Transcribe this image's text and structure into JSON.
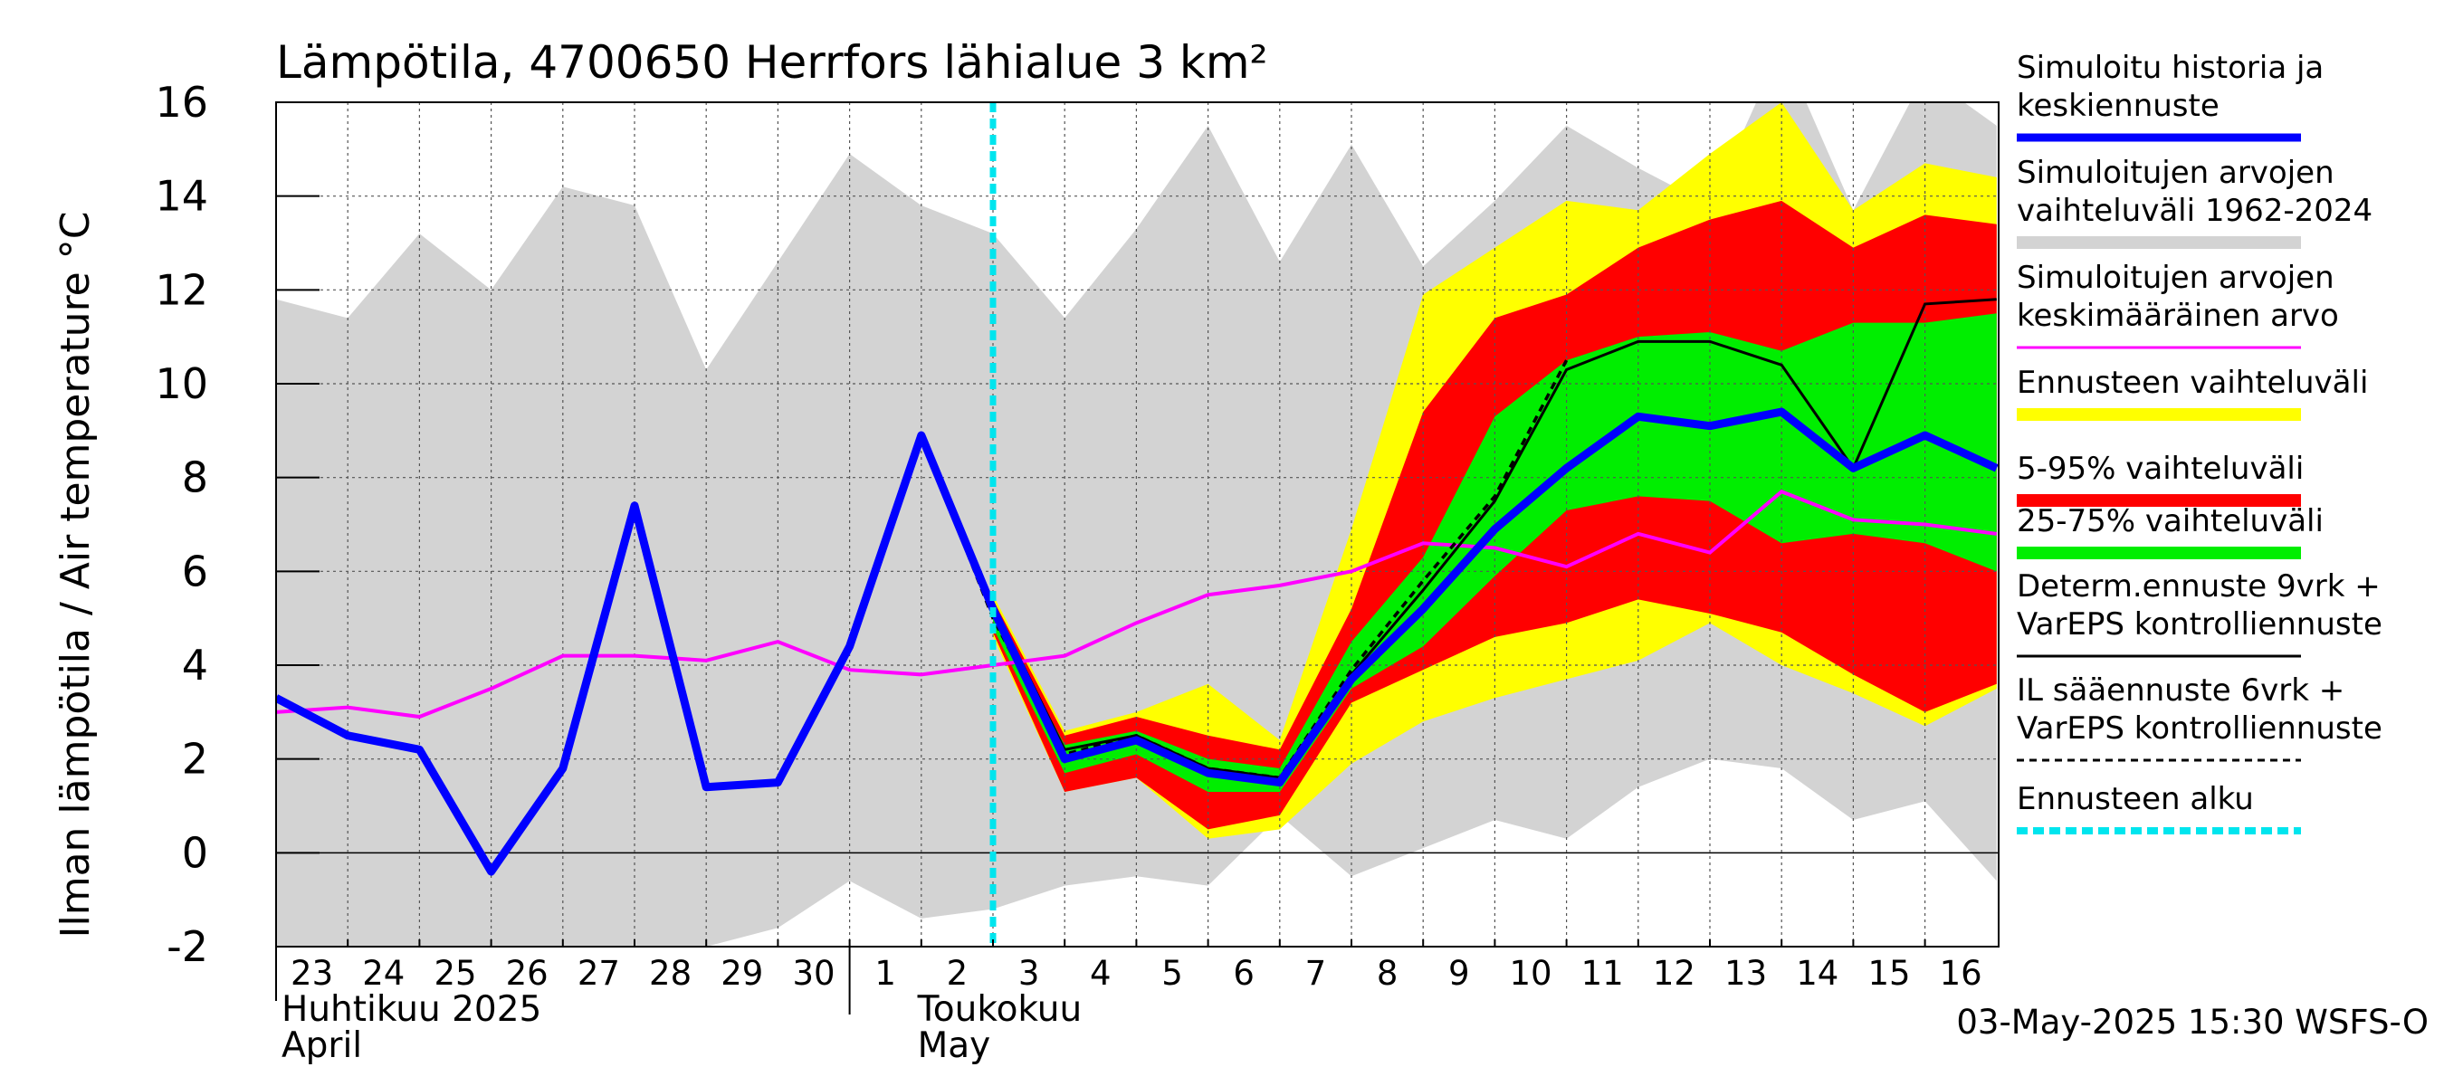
{
  "chart_data": {
    "type": "line",
    "title": "Lämpötila, 4700650 Herrfors lähialue 3 km²",
    "ylabel": "Ilman lämpötila / Air temperature   °C",
    "ylim": [
      -2,
      16
    ],
    "yticks": [
      -2,
      0,
      2,
      4,
      6,
      8,
      10,
      12,
      14,
      16
    ],
    "grid": true,
    "legend_position": "right",
    "x_day_labels": [
      "23",
      "24",
      "25",
      "26",
      "27",
      "28",
      "29",
      "30",
      "1",
      "2",
      "3",
      "4",
      "5",
      "6",
      "7",
      "8",
      "9",
      "10",
      "11",
      "12",
      "13",
      "14",
      "15",
      "16"
    ],
    "month_labels": [
      {
        "fi": "Huhtikuu  2025",
        "en": "April"
      },
      {
        "fi": "Toukokuu",
        "en": "May"
      }
    ],
    "forecast_start_day": 10,
    "timestamp": "03-May-2025 15:30 WSFS-O",
    "legend": [
      {
        "label": "Simuloitu historia ja\nkeskiennuste",
        "color": "#0000ff",
        "style": "thick"
      },
      {
        "label": "Simuloitujen arvojen\nvaihteluväli 1962-2024",
        "color": "#d3d3d3",
        "style": "band"
      },
      {
        "label": "Simuloitujen arvojen\nkeskimääräinen arvo",
        "color": "#ff00ff",
        "style": "line"
      },
      {
        "label": "Ennusteen vaihteluväli",
        "color": "#ffff00",
        "style": "band"
      },
      {
        "label": "5-95% vaihteluväli",
        "color": "#ff0000",
        "style": "band"
      },
      {
        "label": "25-75% vaihteluväli",
        "color": "#00ee00",
        "style": "band"
      },
      {
        "label": "Determ.ennuste 9vrk +\nVarEPS kontrolliennuste",
        "color": "#000000",
        "style": "line"
      },
      {
        "label": "IL sääennuste 6vrk  +\n  VarEPS kontrolliennuste",
        "color": "#000000",
        "style": "dashed"
      },
      {
        "label": "Ennusteen alku",
        "color": "#00e5ee",
        "style": "dotted"
      }
    ],
    "series": {
      "hist_range": {
        "x": [
          0,
          1,
          2,
          3,
          4,
          5,
          6,
          7,
          8,
          9,
          10,
          11,
          12,
          13,
          14,
          15,
          16,
          17,
          18,
          19,
          20,
          21,
          22,
          23,
          24
        ],
        "upper": [
          11.8,
          11.4,
          13.2,
          12.0,
          14.2,
          13.8,
          10.3,
          12.6,
          14.9,
          13.8,
          13.2,
          11.4,
          13.3,
          15.5,
          12.6,
          15.1,
          12.5,
          13.9,
          15.5,
          14.6,
          13.8,
          17.2,
          13.7,
          16.6,
          15.5
        ],
        "lower": [
          -2.0,
          -2.0,
          -2.0,
          -2.0,
          -2.0,
          -2.0,
          -2.0,
          -1.6,
          -0.6,
          -1.4,
          -1.2,
          -0.7,
          -0.5,
          -0.7,
          0.8,
          -0.5,
          0.1,
          0.7,
          0.3,
          1.4,
          2.0,
          1.8,
          0.7,
          1.1,
          -0.6
        ]
      },
      "fc_range": {
        "x": [
          10,
          11,
          12,
          13,
          14,
          15,
          16,
          17,
          18,
          19,
          20,
          21,
          22,
          23,
          24
        ],
        "upper": [
          5.5,
          2.6,
          3.0,
          3.6,
          2.4,
          6.9,
          11.9,
          12.9,
          13.9,
          13.7,
          14.9,
          16.0,
          13.7,
          14.7,
          14.4
        ],
        "lower": [
          4.6,
          1.3,
          1.6,
          0.3,
          0.5,
          1.9,
          2.8,
          3.3,
          3.7,
          4.1,
          4.9,
          4.0,
          3.4,
          2.7,
          3.5
        ]
      },
      "p5_95": {
        "x": [
          10,
          11,
          12,
          13,
          14,
          15,
          16,
          17,
          18,
          19,
          20,
          21,
          22,
          23,
          24
        ],
        "upper": [
          5.4,
          2.5,
          2.9,
          2.5,
          2.2,
          5.2,
          9.4,
          11.4,
          11.9,
          12.9,
          13.5,
          13.9,
          12.9,
          13.6,
          13.4
        ],
        "lower": [
          4.7,
          1.3,
          1.6,
          0.5,
          0.8,
          3.2,
          3.9,
          4.6,
          4.9,
          5.4,
          5.1,
          4.7,
          3.8,
          3.0,
          3.6
        ]
      },
      "p25_75": {
        "x": [
          10,
          11,
          12,
          13,
          14,
          15,
          16,
          17,
          18,
          19,
          20,
          21,
          22,
          23,
          24
        ],
        "upper": [
          5.2,
          2.3,
          2.6,
          2.0,
          1.8,
          4.5,
          6.3,
          9.3,
          10.5,
          11.0,
          11.1,
          10.7,
          11.3,
          11.3,
          11.5
        ],
        "lower": [
          4.8,
          1.7,
          2.1,
          1.3,
          1.3,
          3.5,
          4.4,
          5.9,
          7.3,
          7.6,
          7.5,
          6.6,
          6.8,
          6.6,
          6.0
        ]
      },
      "mean_hist": {
        "x": [
          0,
          1,
          2,
          3,
          4,
          5,
          6,
          7,
          8,
          9,
          10,
          11,
          12,
          13,
          14,
          15,
          16,
          17,
          18,
          19,
          20,
          21,
          22,
          23,
          24
        ],
        "y": [
          3.0,
          3.1,
          2.9,
          3.5,
          4.2,
          4.2,
          4.1,
          4.5,
          3.9,
          3.8,
          4.0,
          4.2,
          4.9,
          5.5,
          5.7,
          6.0,
          6.6,
          6.5,
          6.1,
          6.8,
          6.4,
          7.7,
          7.1,
          7.0,
          6.8
        ]
      },
      "main": {
        "x": [
          0,
          1,
          2,
          3,
          4,
          5,
          6,
          7,
          8,
          9,
          10,
          11,
          12,
          13,
          14,
          15,
          16,
          17,
          18,
          19,
          20,
          21,
          22,
          23,
          24
        ],
        "y": [
          3.3,
          2.5,
          2.2,
          -0.4,
          1.8,
          7.4,
          1.4,
          1.5,
          4.4,
          8.9,
          5.2,
          2.0,
          2.4,
          1.7,
          1.5,
          3.7,
          5.2,
          6.9,
          8.2,
          9.3,
          9.1,
          9.4,
          8.2,
          8.9,
          8.2
        ]
      },
      "determ": {
        "x": [
          9,
          10,
          11,
          12,
          13,
          14,
          15,
          16,
          17,
          18,
          19,
          20,
          21,
          22,
          23,
          24
        ],
        "y": [
          8.9,
          5.3,
          2.2,
          2.5,
          1.8,
          1.6,
          3.8,
          5.6,
          7.5,
          10.3,
          10.9,
          10.9,
          10.4,
          8.2,
          11.7,
          11.8
        ]
      },
      "il": {
        "x": [
          9,
          10,
          11,
          12,
          13,
          14,
          15,
          16,
          17,
          18
        ],
        "y": [
          8.9,
          5.0,
          2.1,
          2.5,
          1.8,
          1.6,
          3.9,
          5.8,
          7.6,
          10.5
        ]
      }
    }
  }
}
